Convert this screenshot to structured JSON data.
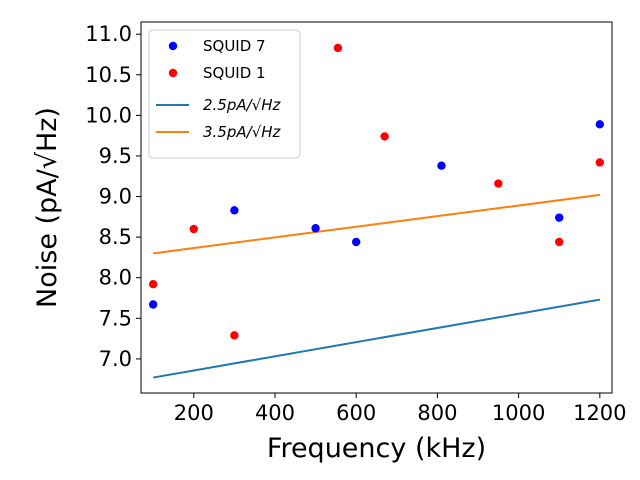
{
  "chart_data": {
    "type": "scatter",
    "xlabel": "Frequency (kHz)",
    "ylabel": "Noise (pA/√Hz)",
    "xlim": [
      70,
      1230
    ],
    "ylim": [
      6.58,
      11.15
    ],
    "x_ticks": [
      200,
      400,
      600,
      800,
      1000,
      1200
    ],
    "y_ticks": [
      7.0,
      7.5,
      8.0,
      8.5,
      9.0,
      9.5,
      10.0,
      10.5,
      11.0
    ],
    "x_tick_labels": [
      "200",
      "400",
      "600",
      "800",
      "1000",
      "1200"
    ],
    "y_tick_labels": [
      "7.0",
      "7.5",
      "8.0",
      "8.5",
      "9.0",
      "9.5",
      "10.0",
      "10.5",
      "11.0"
    ],
    "grid": false,
    "legend_position": "top-left",
    "scatter_series": [
      {
        "name": "SQUID 7",
        "color": "#0000ff",
        "x": [
          100,
          300,
          500,
          600,
          810,
          1100,
          1200
        ],
        "y": [
          7.67,
          8.83,
          8.61,
          8.44,
          9.38,
          8.74,
          9.89
        ]
      },
      {
        "name": "SQUID 1",
        "color": "#ff0000",
        "x": [
          100,
          200,
          300,
          555,
          670,
          950,
          1100,
          1200
        ],
        "y": [
          7.92,
          8.6,
          7.29,
          10.83,
          9.74,
          9.16,
          8.44,
          9.42
        ]
      }
    ],
    "line_series": [
      {
        "name": "2.5pA/√Hz",
        "color": "#1f77b4",
        "x": [
          100,
          1200
        ],
        "y": [
          6.77,
          7.73
        ]
      },
      {
        "name": "3.5pA/√Hz",
        "color": "#ff7f0e",
        "x": [
          100,
          1200
        ],
        "y": [
          8.3,
          9.02
        ]
      }
    ]
  }
}
